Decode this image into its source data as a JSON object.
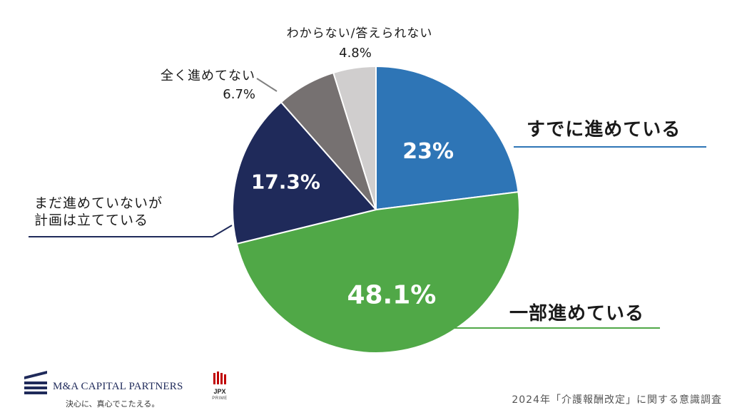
{
  "chart_data": {
    "type": "pie",
    "slices": [
      {
        "label": "すでに進めている",
        "value": 23,
        "value_label": "23%",
        "color": "#2e75b6"
      },
      {
        "label": "一部進めている",
        "value": 48.1,
        "value_label": "48.1%",
        "color": "#50a847"
      },
      {
        "label": "まだ進めていないが\n計画は立てている",
        "value": 17.3,
        "value_label": "17.3%",
        "color": "#1f2a5a"
      },
      {
        "label": "全く進めてない",
        "value": 6.7,
        "value_label": "6.7%",
        "color": "#767171"
      },
      {
        "label": "わからない/答えられない",
        "value": 4.8,
        "value_label": "4.8%",
        "color": "#d0cece"
      }
    ]
  },
  "footer": {
    "brand_name": "M&A CAPITAL PARTNERS",
    "brand_tagline": "決心に、真心でこたえる。",
    "jpx_name": "JPX",
    "jpx_sub": "PRIME",
    "survey_title": "2024年「介護報酬改定」に関する意識調査"
  }
}
